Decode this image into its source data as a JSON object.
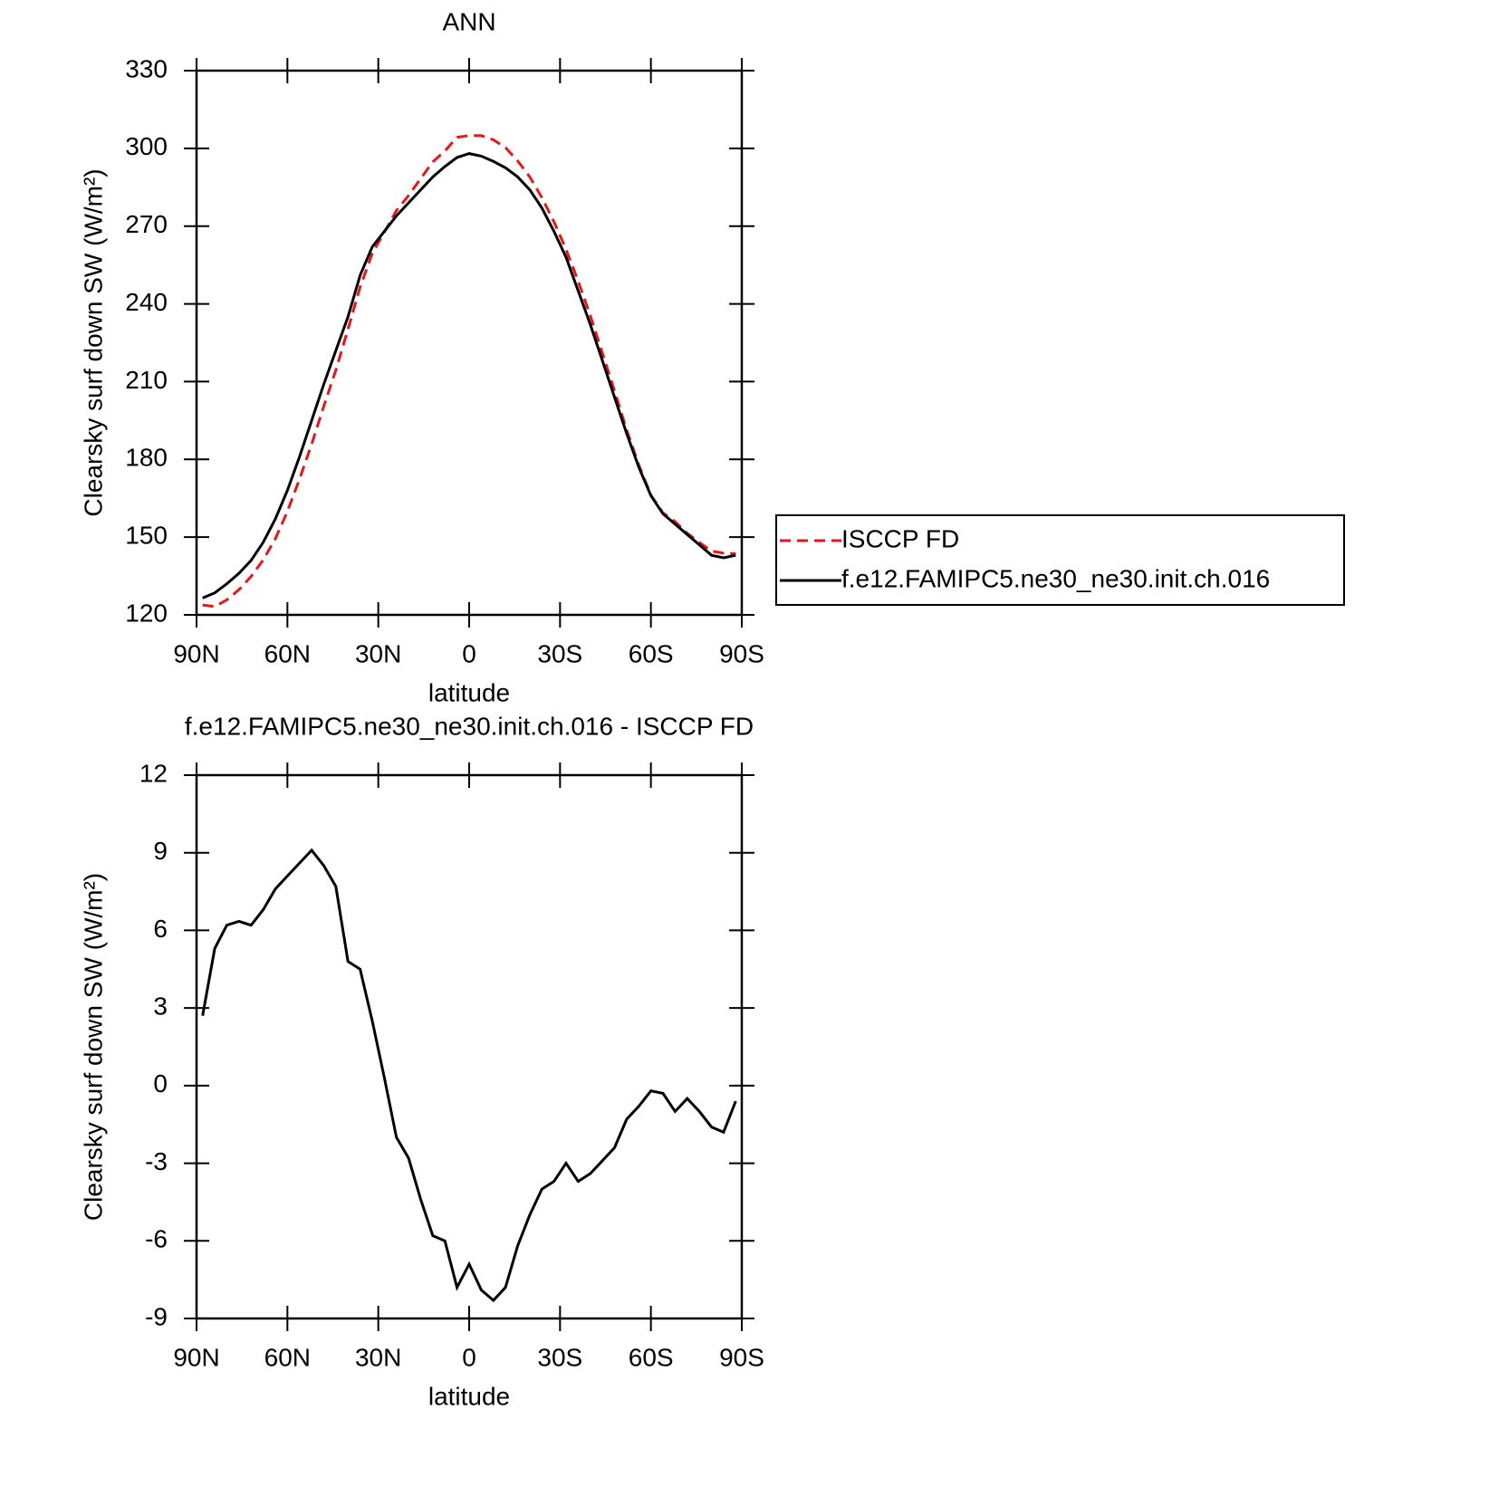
{
  "chart_data": [
    {
      "type": "line",
      "title": "ANN",
      "xlabel": "latitude",
      "ylabel": "Clearsky surf down SW (W/m²)",
      "x": [
        88,
        84,
        80,
        76,
        72,
        68,
        64,
        60,
        56,
        52,
        48,
        44,
        40,
        36,
        32,
        28,
        24,
        20,
        16,
        12,
        8,
        4,
        0,
        -4,
        -8,
        -12,
        -16,
        -20,
        -24,
        -28,
        -32,
        -36,
        -40,
        -44,
        -48,
        -52,
        -56,
        -60,
        -64,
        -68,
        -72,
        -76,
        -80,
        -84,
        -88
      ],
      "xlim": [
        90,
        -90
      ],
      "xticks": [
        {
          "value": 90,
          "label": "90N"
        },
        {
          "value": 60,
          "label": "60N"
        },
        {
          "value": 30,
          "label": "30N"
        },
        0,
        {
          "value": -30,
          "label": "30S"
        },
        {
          "value": -60,
          "label": "60S"
        },
        {
          "value": -90,
          "label": "90S"
        }
      ],
      "ylim": [
        120,
        330
      ],
      "yticks": [
        120,
        150,
        180,
        210,
        240,
        270,
        300,
        330
      ],
      "legend": "right",
      "series": [
        {
          "name": "ISCCP FD",
          "color": "#e8161b",
          "linestyle": "dashed",
          "values": [
            123.8,
            123.2,
            125.8,
            129.7,
            134.8,
            141.2,
            149.4,
            159.9,
            172.4,
            185.9,
            200.5,
            214.4,
            230.2,
            246.5,
            259.5,
            267.7,
            276,
            281.8,
            288.4,
            294.8,
            299,
            304.3,
            304.9,
            304.9,
            303.3,
            300.3,
            295.2,
            289,
            281,
            271.7,
            261,
            248.7,
            235.4,
            220.9,
            206.4,
            191.3,
            177.8,
            166.2,
            159.3,
            156,
            151.5,
            148,
            144.6,
            143.8,
            143.6
          ]
        },
        {
          "name": "f.e12.FAMIPC5.ne30_ne30.init.ch.016",
          "color": "#000000",
          "linestyle": "solid",
          "values": [
            126.5,
            128.5,
            132,
            136,
            141,
            148,
            157,
            168,
            181,
            195,
            209,
            222,
            235,
            251,
            262,
            268,
            274,
            279,
            284,
            289,
            293,
            296.5,
            298,
            297,
            295,
            292.5,
            289,
            284,
            277,
            268,
            258,
            245,
            232,
            218,
            204,
            190,
            177,
            166,
            159,
            155,
            151,
            147,
            143,
            142,
            143
          ]
        }
      ]
    },
    {
      "type": "line",
      "title": "f.e12.FAMIPC5.ne30_ne30.init.ch.016 - ISCCP FD",
      "xlabel": "latitude",
      "ylabel": "Clearsky surf down SW (W/m²)",
      "x": [
        88,
        84,
        80,
        76,
        72,
        68,
        64,
        60,
        56,
        52,
        48,
        44,
        40,
        36,
        32,
        28,
        24,
        20,
        16,
        12,
        8,
        4,
        0,
        -4,
        -8,
        -12,
        -16,
        -20,
        -24,
        -28,
        -32,
        -36,
        -40,
        -44,
        -48,
        -52,
        -56,
        -60,
        -64,
        -68,
        -72,
        -76,
        -80,
        -84,
        -88
      ],
      "xlim": [
        90,
        -90
      ],
      "xticks": [
        {
          "value": 90,
          "label": "90N"
        },
        {
          "value": 60,
          "label": "60N"
        },
        {
          "value": 30,
          "label": "30N"
        },
        0,
        {
          "value": -30,
          "label": "30S"
        },
        {
          "value": -60,
          "label": "60S"
        },
        {
          "value": -90,
          "label": "90S"
        }
      ],
      "ylim": [
        -9,
        12
      ],
      "yticks": [
        -9,
        -6,
        -3,
        0,
        3,
        6,
        9,
        12
      ],
      "series": [
        {
          "color": "#000000",
          "linestyle": "solid",
          "values": [
            2.7,
            5.3,
            6.2,
            6.35,
            6.2,
            6.8,
            7.6,
            8.1,
            8.6,
            9.1,
            8.5,
            7.7,
            4.8,
            4.5,
            2.5,
            0.3,
            -2.0,
            -2.8,
            -4.4,
            -5.8,
            -6.0,
            -7.8,
            -6.9,
            -7.9,
            -8.3,
            -7.8,
            -6.2,
            -5.0,
            -4.0,
            -3.7,
            -3.0,
            -3.7,
            -3.4,
            -2.9,
            -2.4,
            -1.3,
            -0.8,
            -0.2,
            -0.3,
            -1.0,
            -0.5,
            -1.0,
            -1.6,
            -1.8,
            -0.6
          ]
        }
      ]
    }
  ]
}
